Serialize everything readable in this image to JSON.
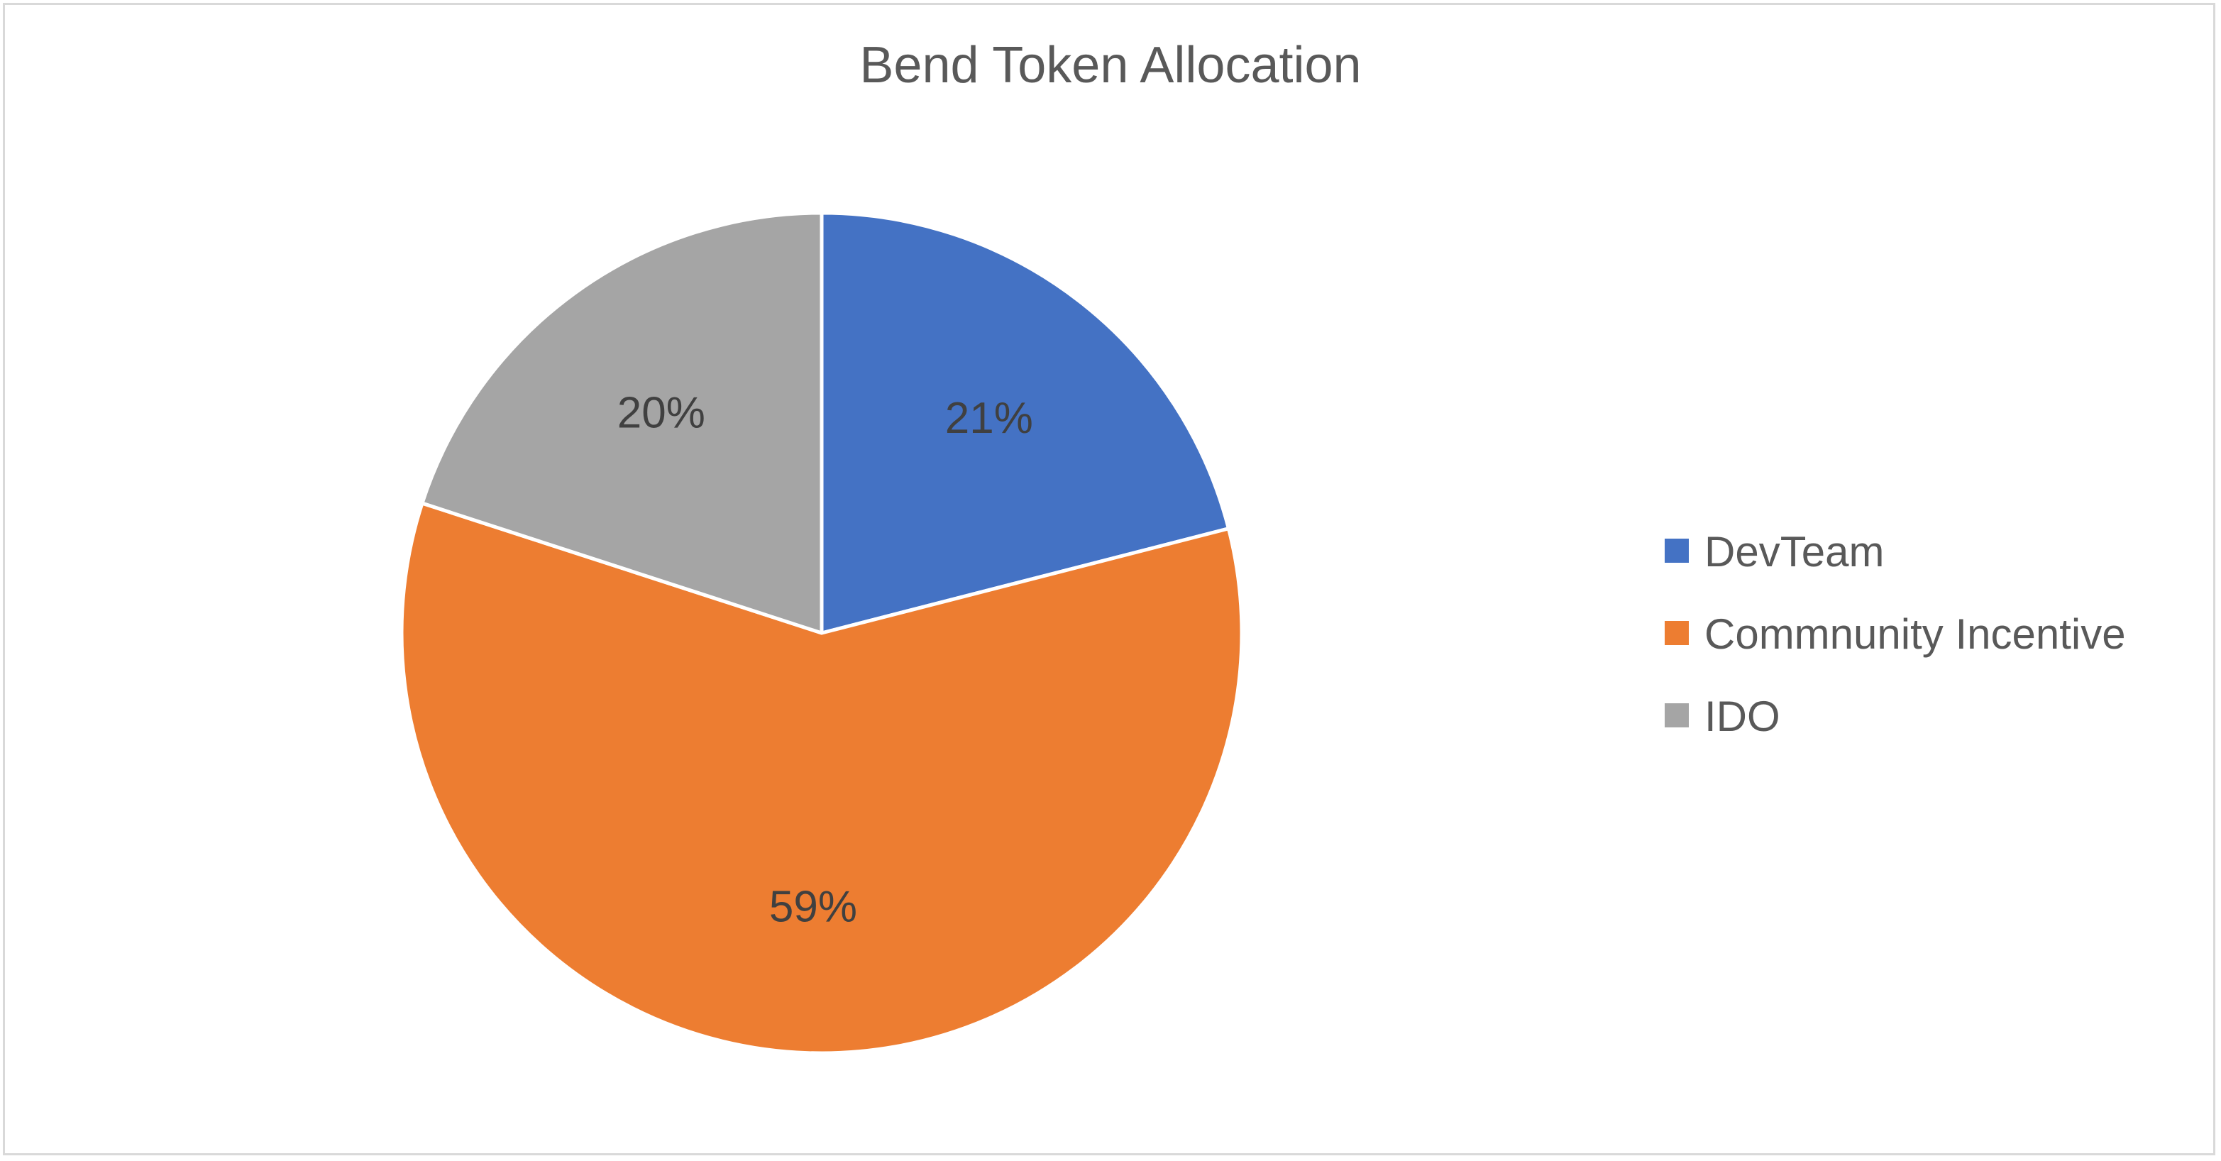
{
  "chart_data": {
    "type": "pie",
    "title": "Bend Token Allocation",
    "slices": [
      {
        "label": "DevTeam",
        "value": 21,
        "display": "21%",
        "color": "#4472C4"
      },
      {
        "label": "Commnunity Incentive",
        "value": 59,
        "display": "59%",
        "color": "#ED7D31"
      },
      {
        "label": "IDO",
        "value": 20,
        "display": "20%",
        "color": "#A5A5A5"
      }
    ],
    "start_angle_deg": 0,
    "direction": "clockwise",
    "legend_position": "right",
    "slice_border_color": "#ffffff",
    "label_color": "#404040",
    "title_color": "#595959",
    "legend_text_color": "#595959"
  }
}
